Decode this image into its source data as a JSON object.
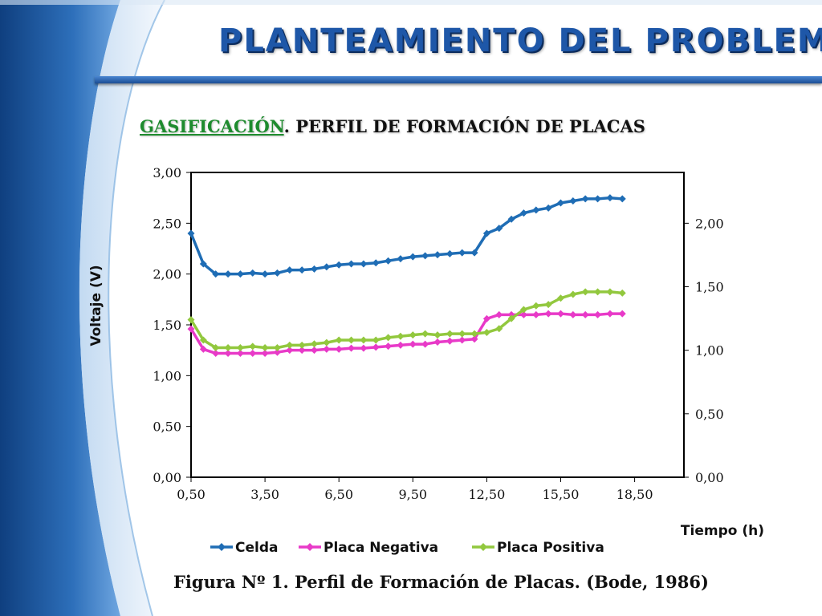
{
  "slide": {
    "title": "PLANTEAMIENTO DEL PROBLEMA",
    "subtitle_highlight": "GASIFICACIÓN",
    "subtitle_rest": ". PERFIL DE FORMACIÓN DE PLACAS",
    "caption": "Figura Nº 1. Perfil de Formación de Placas. (Bode, 1986)"
  },
  "colors": {
    "title": "#1e57a8",
    "celda": "#1f6db5",
    "placa_negativa": "#e83ac8",
    "placa_positiva": "#92c83e",
    "highlight": "#1e8b2e"
  },
  "chart_data": {
    "type": "line",
    "xlabel": "Tiempo (h)",
    "ylabel": "Voltaje (V)",
    "xlim": [
      0.5,
      20.5
    ],
    "ylim": [
      0,
      3
    ],
    "y2lim": [
      0,
      2.4
    ],
    "x_ticks": [
      "0,50",
      "3,50",
      "6,50",
      "9,50",
      "12,50",
      "15,50",
      "18,50"
    ],
    "x_tick_values": [
      0.5,
      3.5,
      6.5,
      9.5,
      12.5,
      15.5,
      18.5
    ],
    "y_ticks": [
      "0,00",
      "0,50",
      "1,00",
      "1,50",
      "2,00",
      "2,50",
      "3,00"
    ],
    "y_tick_values": [
      0,
      0.5,
      1.0,
      1.5,
      2.0,
      2.5,
      3.0
    ],
    "y2_ticks": [
      "0,00",
      "0,50",
      "1,00",
      "1,50",
      "2,00"
    ],
    "y2_tick_values": [
      0,
      0.5,
      1.0,
      1.5,
      2.0
    ],
    "legend_position": "bottom",
    "grid": false,
    "x": [
      0.5,
      1.0,
      1.5,
      2.0,
      2.5,
      3.0,
      3.5,
      4.0,
      4.5,
      5.0,
      5.5,
      6.0,
      6.5,
      7.0,
      7.5,
      8.0,
      8.5,
      9.0,
      9.5,
      10.0,
      10.5,
      11.0,
      11.5,
      12.0,
      12.5,
      13.0,
      13.5,
      14.0,
      14.5,
      15.0,
      15.5,
      16.0,
      16.5,
      17.0,
      17.5,
      18.0
    ],
    "series": [
      {
        "name": "Celda",
        "axis": "left",
        "values": [
          2.4,
          2.1,
          2.0,
          2.0,
          2.0,
          2.01,
          2.0,
          2.01,
          2.04,
          2.04,
          2.05,
          2.07,
          2.09,
          2.1,
          2.1,
          2.11,
          2.13,
          2.15,
          2.17,
          2.18,
          2.19,
          2.2,
          2.21,
          2.21,
          2.4,
          2.45,
          2.54,
          2.6,
          2.63,
          2.65,
          2.7,
          2.72,
          2.74,
          2.74,
          2.75,
          2.74
        ]
      },
      {
        "name": "Placa Negativa",
        "axis": "left",
        "values": [
          1.46,
          1.26,
          1.22,
          1.22,
          1.22,
          1.22,
          1.22,
          1.23,
          1.25,
          1.25,
          1.25,
          1.26,
          1.26,
          1.27,
          1.27,
          1.28,
          1.29,
          1.3,
          1.31,
          1.31,
          1.33,
          1.34,
          1.35,
          1.36,
          1.56,
          1.6,
          1.6,
          1.6,
          1.6,
          1.61,
          1.61,
          1.6,
          1.6,
          1.6,
          1.61,
          1.61
        ]
      },
      {
        "name": "Placa Positiva",
        "axis": "right",
        "values": [
          1.24,
          1.08,
          1.02,
          1.02,
          1.02,
          1.03,
          1.02,
          1.02,
          1.04,
          1.04,
          1.05,
          1.06,
          1.08,
          1.08,
          1.08,
          1.08,
          1.1,
          1.11,
          1.12,
          1.13,
          1.12,
          1.13,
          1.13,
          1.13,
          1.14,
          1.17,
          1.25,
          1.32,
          1.35,
          1.36,
          1.41,
          1.44,
          1.46,
          1.46,
          1.46,
          1.45
        ]
      }
    ]
  }
}
